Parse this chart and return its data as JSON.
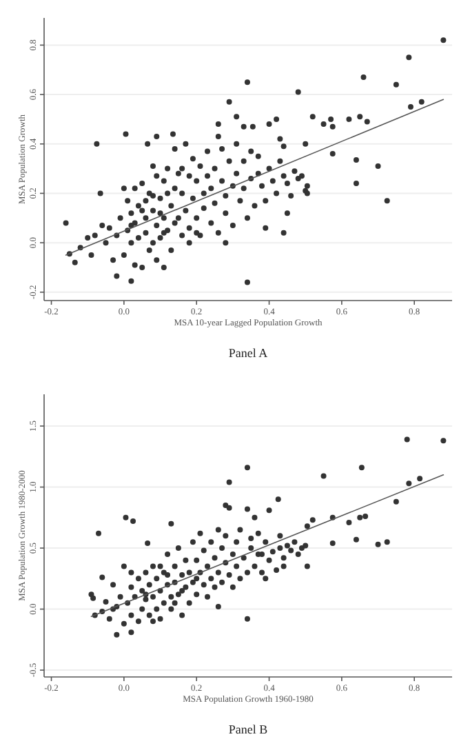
{
  "chart_data": [
    {
      "type": "scatter",
      "title": "Panel A",
      "xlabel": "MSA 10-year Lagged Population Growth",
      "ylabel": "MSA Population Growth",
      "xlim": [
        -0.22,
        0.904
      ],
      "ylim": [
        -0.234,
        0.91
      ],
      "xticks": [
        {
          "value": -0.2,
          "label": "-0.2"
        },
        {
          "value": 0,
          "label": "0.0"
        },
        {
          "value": 0.2,
          "label": "0.2"
        },
        {
          "value": 0.4,
          "label": "0.4"
        },
        {
          "value": 0.6,
          "label": "0.6"
        },
        {
          "value": 0.8,
          "label": "0.8"
        }
      ],
      "yticks": [
        {
          "value": -0.2,
          "label": "-0.2"
        },
        {
          "value": 0,
          "label": "0.0"
        },
        {
          "value": 0.2,
          "label": "0.2"
        },
        {
          "value": 0.4,
          "label": "0.4"
        },
        {
          "value": 0.6,
          "label": "0.6"
        },
        {
          "value": 0.8,
          "label": "0.8"
        }
      ],
      "grid": "y",
      "series": [
        {
          "marker": "circle",
          "color": "#333333",
          "x": [
            0.88,
            0.785,
            0.66,
            0.75,
            0.79,
            0.82,
            0.34,
            0.48,
            0.29,
            0.52,
            0.55,
            0.57,
            0.575,
            0.62,
            0.65,
            0.67,
            0.64,
            0.64,
            0.7,
            0.725,
            0.575,
            0.5,
            0.34,
            0.005,
            -0.075,
            0.09,
            0.135,
            0.065,
            -0.16,
            -0.15,
            -0.135,
            -0.065,
            0.02,
            -0.02,
            0.11,
            0.44,
            0.45,
            0.39,
            0.28,
            0.505,
            0.505,
            0.42,
            0.4,
            0.31,
            0.26,
            0.355,
            0.43,
            0.44,
            0.33,
            -0.1,
            -0.08,
            -0.12,
            -0.09,
            -0.05,
            -0.04,
            -0.03,
            -0.02,
            -0.01,
            0.0,
            0.0,
            0.01,
            0.01,
            0.02,
            0.02,
            0.03,
            0.03,
            0.04,
            0.04,
            0.05,
            0.05,
            0.06,
            0.06,
            0.07,
            0.07,
            0.08,
            0.08,
            0.09,
            0.09,
            0.1,
            0.1,
            0.11,
            0.11,
            0.12,
            0.12,
            0.13,
            0.13,
            0.14,
            0.14,
            0.15,
            0.15,
            0.16,
            0.16,
            0.17,
            0.17,
            0.18,
            0.18,
            0.19,
            0.19,
            0.2,
            0.2,
            0.21,
            0.21,
            0.22,
            0.22,
            0.23,
            0.23,
            0.24,
            0.24,
            0.25,
            0.25,
            0.26,
            0.26,
            0.27,
            0.27,
            0.28,
            0.28,
            0.29,
            0.3,
            0.3,
            0.31,
            0.31,
            0.32,
            0.33,
            0.33,
            0.34,
            0.35,
            0.35,
            0.36,
            0.37,
            0.37,
            0.38,
            0.39,
            0.4,
            0.41,
            0.42,
            0.43,
            0.44,
            0.45,
            0.46,
            0.47,
            0.48,
            0.49,
            0.5,
            0.02,
            0.05,
            0.08,
            0.12,
            0.14,
            0.1,
            0.06,
            0.16,
            0.2,
            0.18,
            0.03,
            -0.06,
            0.08,
            0.09,
            0.11
          ],
          "values": [
            0.82,
            0.75,
            0.67,
            0.64,
            0.55,
            0.57,
            0.65,
            0.61,
            0.57,
            0.51,
            0.48,
            0.5,
            0.47,
            0.5,
            0.51,
            0.49,
            0.335,
            0.24,
            0.31,
            0.17,
            0.36,
            0.4,
            -0.16,
            0.44,
            0.4,
            0.43,
            0.44,
            0.4,
            0.08,
            -0.045,
            -0.08,
            0.2,
            -0.155,
            -0.135,
            -0.1,
            0.04,
            0.12,
            0.06,
            0.0,
            0.2,
            0.23,
            0.5,
            0.48,
            0.51,
            0.48,
            0.47,
            0.42,
            0.39,
            0.47,
            0.02,
            0.03,
            -0.02,
            -0.05,
            0.0,
            0.06,
            -0.07,
            0.03,
            0.1,
            0.22,
            -0.05,
            0.17,
            0.05,
            0.0,
            0.12,
            0.08,
            -0.09,
            0.15,
            0.02,
            0.24,
            -0.1,
            0.1,
            0.04,
            0.2,
            -0.03,
            0.13,
            0.31,
            0.07,
            -0.07,
            0.18,
            0.02,
            0.25,
            0.1,
            0.3,
            0.05,
            0.15,
            -0.03,
            0.22,
            0.38,
            0.1,
            0.28,
            0.03,
            0.2,
            0.4,
            0.13,
            0.27,
            0.06,
            0.34,
            0.18,
            0.1,
            0.25,
            0.31,
            0.03,
            0.2,
            0.14,
            0.37,
            0.27,
            0.08,
            0.22,
            0.3,
            0.16,
            0.43,
            0.04,
            0.25,
            0.38,
            0.19,
            0.12,
            0.33,
            0.23,
            0.07,
            0.4,
            0.28,
            0.17,
            0.33,
            0.22,
            0.1,
            0.26,
            0.37,
            0.15,
            0.28,
            0.35,
            0.23,
            0.17,
            0.3,
            0.25,
            0.2,
            0.33,
            0.27,
            0.24,
            0.19,
            0.29,
            0.26,
            0.27,
            0.21,
            0.07,
            0.13,
            0.0,
            0.2,
            0.08,
            0.12,
            0.17,
            0.3,
            0.04,
            0.0,
            0.22,
            0.07,
            0.19,
            0.27,
            0.04
          ]
        },
        {
          "type": "line",
          "color": "#555555",
          "x": [
            -0.16,
            0.88
          ],
          "values": [
            -0.05,
            0.58
          ]
        }
      ]
    },
    {
      "type": "scatter",
      "title": "Panel B",
      "xlabel": "MSA Population Growth 1960-1980",
      "ylabel": "MSA Population Growth 1980-2000",
      "xlim": [
        -0.22,
        0.904
      ],
      "ylim": [
        -0.556,
        1.76
      ],
      "xticks": [
        {
          "value": -0.2,
          "label": "-0.2"
        },
        {
          "value": 0,
          "label": "0.0"
        },
        {
          "value": 0.2,
          "label": "0.2"
        },
        {
          "value": 0.4,
          "label": "0.4"
        },
        {
          "value": 0.6,
          "label": "0.6"
        },
        {
          "value": 0.8,
          "label": "0.8"
        }
      ],
      "yticks": [
        {
          "value": -0.5,
          "label": "-0.5"
        },
        {
          "value": 0,
          "label": "0.0"
        },
        {
          "value": 0.5,
          "label": "0.5"
        },
        {
          "value": 1,
          "label": "1.0"
        },
        {
          "value": 1.5,
          "label": "1.5"
        }
      ],
      "grid": "y",
      "series": [
        {
          "marker": "circle",
          "color": "#333333",
          "x": [
            0.78,
            0.88,
            0.34,
            0.655,
            0.29,
            0.55,
            0.785,
            0.815,
            0.75,
            0.665,
            0.65,
            0.62,
            0.575,
            0.575,
            0.64,
            0.7,
            0.725,
            0.52,
            0.505,
            0.505,
            0.425,
            0.4,
            0.34,
            0.28,
            0.29,
            0.34,
            0.26,
            0.005,
            0.025,
            -0.07,
            -0.06,
            0.065,
            -0.09,
            -0.085,
            -0.02,
            0.02,
            0.13,
            0.39,
            0.44,
            0.45,
            0.47,
            0.49,
            0.43,
            0.36,
            0.38,
            -0.08,
            -0.06,
            -0.05,
            -0.04,
            -0.03,
            -0.02,
            -0.01,
            0.0,
            0.0,
            0.01,
            0.02,
            0.02,
            0.03,
            0.04,
            0.04,
            0.05,
            0.05,
            0.06,
            0.06,
            0.07,
            0.07,
            0.08,
            0.08,
            0.09,
            0.09,
            0.1,
            0.1,
            0.11,
            0.11,
            0.12,
            0.12,
            0.13,
            0.13,
            0.14,
            0.14,
            0.15,
            0.15,
            0.16,
            0.16,
            0.17,
            0.17,
            0.18,
            0.18,
            0.19,
            0.19,
            0.2,
            0.2,
            0.21,
            0.21,
            0.22,
            0.22,
            0.23,
            0.23,
            0.24,
            0.24,
            0.25,
            0.25,
            0.26,
            0.26,
            0.27,
            0.27,
            0.28,
            0.28,
            0.29,
            0.3,
            0.3,
            0.31,
            0.31,
            0.32,
            0.32,
            0.33,
            0.34,
            0.35,
            0.35,
            0.36,
            0.37,
            0.37,
            0.38,
            0.39,
            0.4,
            0.41,
            0.42,
            0.43,
            0.44,
            0.46,
            0.48,
            0.5,
            0.02,
            0.06,
            0.1,
            0.14,
            0.08,
            0.12,
            0.16,
            0.2,
            -0.03
          ],
          "values": [
            1.39,
            1.38,
            1.16,
            1.16,
            1.04,
            1.09,
            1.03,
            1.07,
            0.88,
            0.76,
            0.75,
            0.71,
            0.75,
            0.54,
            0.57,
            0.53,
            0.55,
            0.73,
            0.68,
            0.35,
            0.9,
            0.81,
            0.82,
            0.85,
            0.83,
            -0.08,
            0.02,
            0.75,
            0.72,
            0.62,
            0.26,
            0.54,
            0.12,
            0.09,
            -0.21,
            -0.19,
            0.7,
            0.25,
            0.35,
            0.52,
            0.55,
            0.5,
            0.6,
            0.75,
            0.45,
            -0.05,
            -0.02,
            0.06,
            -0.08,
            0.2,
            0.02,
            0.1,
            -0.12,
            0.35,
            0.05,
            0.18,
            -0.05,
            0.1,
            0.25,
            -0.1,
            0.0,
            0.15,
            0.3,
            0.08,
            -0.05,
            0.2,
            0.1,
            0.35,
            0.0,
            0.25,
            0.15,
            -0.08,
            0.3,
            0.05,
            0.45,
            0.2,
            0.1,
            0.0,
            0.35,
            0.22,
            0.5,
            0.12,
            0.28,
            -0.05,
            0.4,
            0.18,
            0.05,
            0.3,
            0.55,
            0.22,
            0.4,
            0.12,
            0.62,
            0.3,
            0.2,
            0.48,
            0.1,
            0.35,
            0.55,
            0.25,
            0.42,
            0.18,
            0.65,
            0.3,
            0.5,
            0.22,
            0.38,
            0.6,
            0.28,
            0.45,
            0.18,
            0.55,
            0.35,
            0.65,
            0.25,
            0.42,
            0.3,
            0.5,
            0.58,
            0.35,
            0.45,
            0.62,
            0.3,
            0.55,
            0.4,
            0.47,
            0.32,
            0.5,
            0.42,
            0.48,
            0.45,
            0.52,
            0.3,
            0.12,
            0.35,
            0.05,
            -0.1,
            0.28,
            0.15,
            0.25,
            0.0
          ]
        },
        {
          "type": "line",
          "color": "#555555",
          "x": [
            -0.09,
            0.88
          ],
          "values": [
            -0.06,
            1.1
          ]
        }
      ]
    }
  ]
}
